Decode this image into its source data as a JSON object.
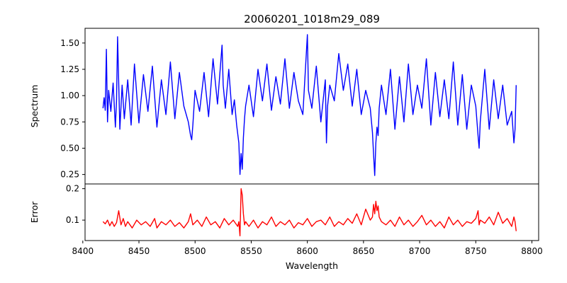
{
  "chart_data": {
    "type": "line",
    "title": "20060201_1018m29_089",
    "xlabel": "Wavelength",
    "xlim": [
      8402,
      8806
    ],
    "xticks": [
      8400,
      8450,
      8500,
      8550,
      8600,
      8650,
      8700,
      8750,
      8800
    ],
    "xtick_labels": [
      "8400",
      "8450",
      "8500",
      "8550",
      "8600",
      "8650",
      "8700",
      "8750",
      "8800"
    ],
    "panels": [
      {
        "name": "spectrum",
        "ylabel": "Spectrum",
        "ylim": [
          0.16,
          1.64
        ],
        "yticks": [
          0.25,
          0.5,
          0.75,
          1.0,
          1.25,
          1.5
        ],
        "ytick_labels": [
          "0.25",
          "0.50",
          "0.75",
          "1.00",
          "1.25",
          "1.50"
        ],
        "color": "#0000ff",
        "x": [
          8418,
          8419,
          8420,
          8421,
          8422,
          8423,
          8425,
          8427,
          8429,
          8430,
          8431,
          8433,
          8435,
          8437,
          8440,
          8443,
          8446,
          8450,
          8454,
          8458,
          8462,
          8466,
          8470,
          8474,
          8478,
          8482,
          8486,
          8490,
          8494,
          8496,
          8497,
          8498,
          8500,
          8504,
          8508,
          8512,
          8516,
          8520,
          8524,
          8525,
          8527,
          8530,
          8533,
          8535,
          8537,
          8539,
          8540,
          8541,
          8542,
          8543,
          8544,
          8545,
          8548,
          8552,
          8556,
          8560,
          8564,
          8568,
          8572,
          8576,
          8580,
          8584,
          8588,
          8592,
          8596,
          8600,
          8601,
          8604,
          8608,
          8612,
          8616,
          8617,
          8618,
          8620,
          8624,
          8628,
          8632,
          8636,
          8640,
          8644,
          8648,
          8652,
          8656,
          8658,
          8659,
          8660,
          8661,
          8662,
          8663,
          8664,
          8666,
          8670,
          8674,
          8678,
          8682,
          8686,
          8690,
          8694,
          8698,
          8702,
          8706,
          8710,
          8714,
          8718,
          8722,
          8726,
          8730,
          8734,
          8738,
          8742,
          8746,
          8750,
          8752,
          8753,
          8754,
          8758,
          8762,
          8766,
          8770,
          8774,
          8778,
          8782,
          8784,
          8785,
          8786
        ],
        "y": [
          0.88,
          0.98,
          0.86,
          1.44,
          0.75,
          1.05,
          0.85,
          1.12,
          0.7,
          0.95,
          1.56,
          0.68,
          1.1,
          0.78,
          1.15,
          0.72,
          1.3,
          0.74,
          1.2,
          0.85,
          1.28,
          0.7,
          1.15,
          0.82,
          1.32,
          0.78,
          1.22,
          0.9,
          0.75,
          0.62,
          0.58,
          0.72,
          1.05,
          0.85,
          1.22,
          0.8,
          1.35,
          0.92,
          1.48,
          1.1,
          0.88,
          1.25,
          0.82,
          0.96,
          0.72,
          0.55,
          0.25,
          0.45,
          0.3,
          0.6,
          0.78,
          0.9,
          1.1,
          0.8,
          1.25,
          0.95,
          1.3,
          0.86,
          1.18,
          0.92,
          1.35,
          0.88,
          1.22,
          0.95,
          0.82,
          1.58,
          1.05,
          0.88,
          1.28,
          0.75,
          1.15,
          0.55,
          0.9,
          1.1,
          0.95,
          1.4,
          1.05,
          1.3,
          0.9,
          1.25,
          0.82,
          1.05,
          0.88,
          0.65,
          0.44,
          0.24,
          0.55,
          0.7,
          0.62,
          0.88,
          1.1,
          0.82,
          1.25,
          0.68,
          1.18,
          0.75,
          1.3,
          0.82,
          1.1,
          0.88,
          1.35,
          0.72,
          1.22,
          0.8,
          1.15,
          0.78,
          1.32,
          0.72,
          1.2,
          0.68,
          1.1,
          0.9,
          0.62,
          0.5,
          0.75,
          1.25,
          0.68,
          1.15,
          0.78,
          1.1,
          0.72,
          0.85,
          0.55,
          0.68,
          1.1
        ]
      },
      {
        "name": "error",
        "ylabel": "Error",
        "ylim": [
          0.035,
          0.215
        ],
        "yticks": [
          0.1,
          0.2
        ],
        "ytick_labels": [
          "0.1",
          "0.2"
        ],
        "color": "#ff0000",
        "x": [
          8418,
          8420,
          8422,
          8424,
          8426,
          8428,
          8430,
          8432,
          8434,
          8436,
          8438,
          8440,
          8444,
          8448,
          8452,
          8456,
          8460,
          8464,
          8466,
          8470,
          8474,
          8478,
          8482,
          8486,
          8490,
          8494,
          8496,
          8498,
          8502,
          8506,
          8510,
          8514,
          8518,
          8522,
          8526,
          8530,
          8534,
          8538,
          8539,
          8540,
          8541,
          8542,
          8543,
          8544,
          8545,
          8548,
          8552,
          8556,
          8560,
          8564,
          8568,
          8572,
          8576,
          8580,
          8584,
          8588,
          8592,
          8596,
          8600,
          8604,
          8608,
          8612,
          8616,
          8620,
          8624,
          8628,
          8632,
          8636,
          8640,
          8644,
          8648,
          8652,
          8656,
          8658,
          8659,
          8660,
          8661,
          8662,
          8663,
          8664,
          8666,
          8670,
          8674,
          8678,
          8682,
          8686,
          8690,
          8694,
          8698,
          8702,
          8706,
          8710,
          8714,
          8718,
          8722,
          8726,
          8730,
          8734,
          8738,
          8742,
          8746,
          8750,
          8752,
          8753,
          8754,
          8758,
          8762,
          8766,
          8770,
          8774,
          8778,
          8782,
          8784,
          8785,
          8786
        ],
        "y": [
          0.095,
          0.088,
          0.1,
          0.082,
          0.095,
          0.08,
          0.092,
          0.13,
          0.085,
          0.105,
          0.08,
          0.095,
          0.075,
          0.1,
          0.085,
          0.095,
          0.08,
          0.105,
          0.075,
          0.095,
          0.085,
          0.1,
          0.08,
          0.092,
          0.075,
          0.095,
          0.12,
          0.085,
          0.1,
          0.08,
          0.11,
          0.085,
          0.095,
          0.075,
          0.105,
          0.085,
          0.1,
          0.08,
          0.095,
          0.05,
          0.2,
          0.18,
          0.12,
          0.085,
          0.095,
          0.08,
          0.1,
          0.075,
          0.095,
          0.085,
          0.11,
          0.08,
          0.095,
          0.085,
          0.1,
          0.075,
          0.092,
          0.085,
          0.105,
          0.08,
          0.095,
          0.1,
          0.085,
          0.11,
          0.08,
          0.095,
          0.085,
          0.105,
          0.09,
          0.12,
          0.085,
          0.135,
          0.1,
          0.11,
          0.15,
          0.12,
          0.16,
          0.13,
          0.145,
          0.11,
          0.095,
          0.085,
          0.1,
          0.08,
          0.11,
          0.085,
          0.1,
          0.08,
          0.095,
          0.115,
          0.085,
          0.1,
          0.08,
          0.095,
          0.075,
          0.11,
          0.085,
          0.1,
          0.08,
          0.095,
          0.09,
          0.105,
          0.13,
          0.085,
          0.1,
          0.09,
          0.11,
          0.085,
          0.125,
          0.09,
          0.105,
          0.08,
          0.11,
          0.095,
          0.065
        ]
      }
    ]
  }
}
